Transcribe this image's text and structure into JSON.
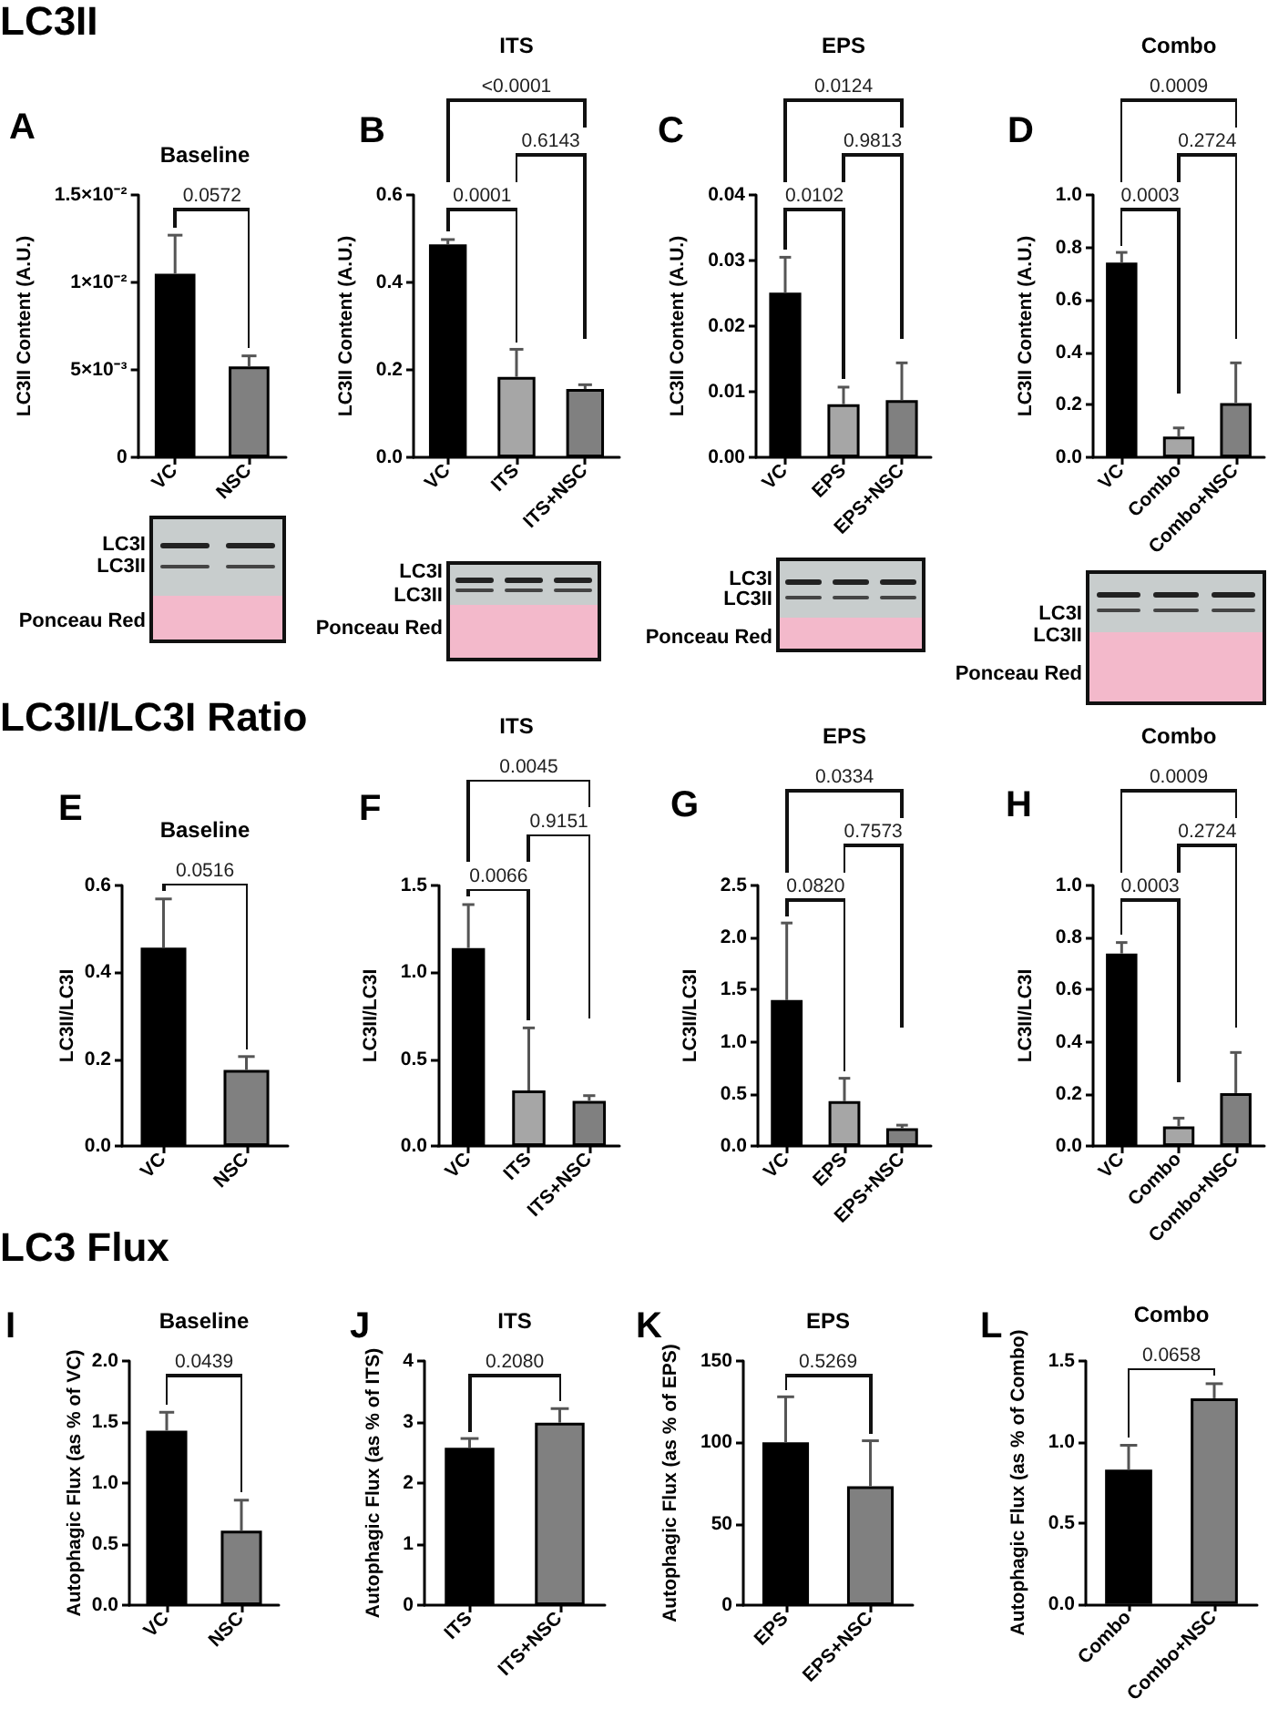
{
  "chart_data": [
    {
      "type": "bar",
      "title": "Baseline",
      "ylabel": "LC3II Content (A.U.)",
      "categories": [
        "VC",
        "NSC"
      ],
      "values": [
        0.0105,
        0.0052
      ],
      "colors": [
        "#000000",
        "#808080"
      ],
      "errors": [
        [
          0.0105,
          0.0127
        ],
        [
          0.0052,
          0.0058
        ]
      ],
      "ylim": [
        0,
        0.015
      ],
      "yticks": [
        0,
        {
          "value": 0.005,
          "label": "5×10⁻³"
        },
        {
          "value": 0.01,
          "label": "1×10⁻²"
        },
        {
          "value": 0.015,
          "label": "1.5×10⁻²"
        }
      ],
      "annotations": [
        "LC3II",
        "A",
        "0.0572",
        "LC3I",
        "LC3II",
        "Ponceau Red"
      ]
    },
    {
      "type": "bar",
      "title": "ITS",
      "ylabel": "LC3II Content (A.U.)",
      "categories": [
        "VC",
        "ITS",
        "ITS+NSC"
      ],
      "values": [
        0.487,
        0.184,
        0.156
      ],
      "colors": [
        "#000000",
        "#a6a6a6",
        "#808080"
      ],
      "errors": [
        [
          0.487,
          0.498
        ],
        [
          0.184,
          0.247
        ],
        [
          0.156,
          0.166
        ]
      ],
      "ylim": [
        0,
        0.6
      ],
      "yticks": [
        {
          "value": 0,
          "label": "0.0"
        },
        0.2,
        0.4,
        0.6
      ],
      "annotations": [
        "B",
        "0.0001",
        "0.6143",
        "<0.0001",
        "LC3I",
        "LC3II",
        "Ponceau Red"
      ]
    },
    {
      "type": "bar",
      "title": "EPS",
      "ylabel": "LC3II Content (A.U.)",
      "categories": [
        "VC",
        "EPS",
        "EPS+NSC"
      ],
      "values": [
        0.0251,
        0.0081,
        0.0087
      ],
      "colors": [
        "#000000",
        "#a6a6a6",
        "#808080"
      ],
      "errors": [
        [
          0.0251,
          0.0305
        ],
        [
          0.0081,
          0.0107
        ],
        [
          0.0087,
          0.0144
        ]
      ],
      "ylim": [
        0,
        0.04
      ],
      "yticks": [
        {
          "value": 0,
          "label": "0.00"
        },
        0.01,
        0.02,
        0.03,
        0.04
      ],
      "annotations": [
        "C",
        "0.0102",
        "0.9813",
        "0.0124",
        "LC3I",
        "LC3II",
        "Ponceau Red"
      ]
    },
    {
      "type": "bar",
      "title": "Combo",
      "ylabel": "LC3II Content (A.U.)",
      "categories": [
        "VC",
        "Combo",
        "Combo+NSC"
      ],
      "values": [
        0.742,
        0.079,
        0.207
      ],
      "colors": [
        "#000000",
        "#a6a6a6",
        "#808080"
      ],
      "errors": [
        [
          0.742,
          0.781
        ],
        [
          0.079,
          0.112
        ],
        [
          0.207,
          0.36
        ]
      ],
      "ylim": [
        0,
        1
      ],
      "yticks": [
        {
          "value": 0,
          "label": "0.0"
        },
        0.2,
        0.4,
        0.6,
        0.8,
        {
          "value": 1,
          "label": "1.0"
        }
      ],
      "annotations": [
        "D",
        "0.0003",
        "0.2724",
        "0.0009",
        "LC3I",
        "LC3II",
        "Ponceau Red"
      ]
    },
    {
      "type": "bar",
      "title": "Baseline",
      "ylabel": "LC3II/LC3I",
      "categories": [
        "VC",
        "NSC"
      ],
      "values": [
        0.457,
        0.175
      ],
      "colors": [
        "#000000",
        "#808080"
      ],
      "errors": [
        [
          0.457,
          0.569
        ],
        [
          0.175,
          0.206
        ]
      ],
      "ylim": [
        0,
        0.6
      ],
      "yticks": [
        {
          "value": 0,
          "label": "0.0"
        },
        0.2,
        0.4,
        0.6
      ],
      "annotations": [
        "LC3II/LC3I Ratio",
        "E",
        "0.0516"
      ]
    },
    {
      "type": "bar",
      "title": "ITS",
      "ylabel": "LC3II/LC3I",
      "categories": [
        "VC",
        "ITS",
        "ITS+NSC"
      ],
      "values": [
        1.14,
        0.32,
        0.26
      ],
      "colors": [
        "#000000",
        "#a6a6a6",
        "#808080"
      ],
      "errors": [
        [
          1.14,
          1.39
        ],
        [
          0.32,
          0.68
        ],
        [
          0.26,
          0.29
        ]
      ],
      "ylim": [
        0,
        1.5
      ],
      "yticks": [
        {
          "value": 0,
          "label": "0.0"
        },
        0.5,
        {
          "value": 1,
          "label": "1.0"
        },
        1.5
      ],
      "annotations": [
        "F",
        "0.0066",
        "0.9151",
        "0.0045"
      ]
    },
    {
      "type": "bar",
      "title": "EPS",
      "ylabel": "LC3II/LC3I",
      "categories": [
        "VC",
        "EPS",
        "EPS+NSC"
      ],
      "values": [
        1.4,
        0.43,
        0.17
      ],
      "colors": [
        "#000000",
        "#a6a6a6",
        "#808080"
      ],
      "errors": [
        [
          1.4,
          2.14
        ],
        [
          0.43,
          0.65
        ],
        [
          0.17,
          0.2
        ]
      ],
      "ylim": [
        0,
        2.5
      ],
      "yticks": [
        {
          "value": 0,
          "label": "0.0"
        },
        0.5,
        {
          "value": 1,
          "label": "1.0"
        },
        1.5,
        {
          "value": 2,
          "label": "2.0"
        },
        2.5
      ],
      "annotations": [
        "G",
        "0.0820",
        "0.7573",
        "0.0334"
      ]
    },
    {
      "type": "bar",
      "title": "Combo",
      "ylabel": "LC3II/LC3I",
      "categories": [
        "VC",
        "Combo",
        "Combo+NSC"
      ],
      "values": [
        0.739,
        0.075,
        0.203
      ],
      "colors": [
        "#000000",
        "#a6a6a6",
        "#808080"
      ],
      "errors": [
        [
          0.739,
          0.781
        ],
        [
          0.075,
          0.107
        ],
        [
          0.203,
          0.359
        ]
      ],
      "ylim": [
        0,
        1
      ],
      "yticks": [
        {
          "value": 0,
          "label": "0.0"
        },
        0.2,
        0.4,
        0.6,
        0.8,
        {
          "value": 1,
          "label": "1.0"
        }
      ],
      "annotations": [
        "H",
        "0.0003",
        "0.2724",
        "0.0009"
      ]
    },
    {
      "type": "bar",
      "title": "Baseline",
      "ylabel": "Autophagic Flux (as % of VC)",
      "categories": [
        "VC",
        "NSC"
      ],
      "values": [
        1.43,
        0.61
      ],
      "colors": [
        "#000000",
        "#808080"
      ],
      "errors": [
        [
          1.43,
          1.58
        ],
        [
          0.61,
          0.86
        ]
      ],
      "ylim": [
        0,
        2
      ],
      "yticks": [
        {
          "value": 0,
          "label": "0.0"
        },
        0.5,
        {
          "value": 1,
          "label": "1.0"
        },
        1.5,
        {
          "value": 2,
          "label": "2.0"
        }
      ],
      "annotations": [
        "LC3 Flux",
        "I",
        "0.0439"
      ]
    },
    {
      "type": "bar",
      "title": "ITS",
      "ylabel": "Autophagic Flux (as % of ITS)",
      "categories": [
        "ITS",
        "ITS+NSC"
      ],
      "values": [
        2.58,
        2.99
      ],
      "colors": [
        "#000000",
        "#808080"
      ],
      "errors": [
        [
          2.58,
          2.73
        ],
        [
          2.99,
          3.22
        ]
      ],
      "ylim": [
        0,
        4
      ],
      "yticks": [
        0,
        1,
        2,
        3,
        4
      ],
      "annotations": [
        "J",
        "0.2080"
      ]
    },
    {
      "type": "bar",
      "title": "EPS",
      "ylabel": "Autophagic Flux (as % of EPS)",
      "categories": [
        "EPS",
        "EPS+NSC"
      ],
      "values": [
        100,
        73
      ],
      "colors": [
        "#000000",
        "#808080"
      ],
      "errors": [
        [
          100,
          128
        ],
        [
          73,
          101
        ]
      ],
      "ylim": [
        0,
        150
      ],
      "yticks": [
        0,
        50,
        100,
        150
      ],
      "annotations": [
        "K",
        "0.5269"
      ]
    },
    {
      "type": "bar",
      "title": "Combo",
      "ylabel": "Autophagic Flux (as % of Combo)",
      "categories": [
        "Combo",
        "Combo+NSC"
      ],
      "values": [
        0.83,
        1.27
      ],
      "colors": [
        "#000000",
        "#808080"
      ],
      "errors": [
        [
          0.83,
          0.98
        ],
        [
          1.27,
          1.36
        ]
      ],
      "ylim": [
        0,
        1.5
      ],
      "yticks": [
        {
          "value": 0,
          "label": "0.0"
        },
        0.5,
        {
          "value": 1,
          "label": "1.0"
        },
        1.5
      ],
      "annotations": [
        "L",
        "0.0658"
      ]
    }
  ]
}
